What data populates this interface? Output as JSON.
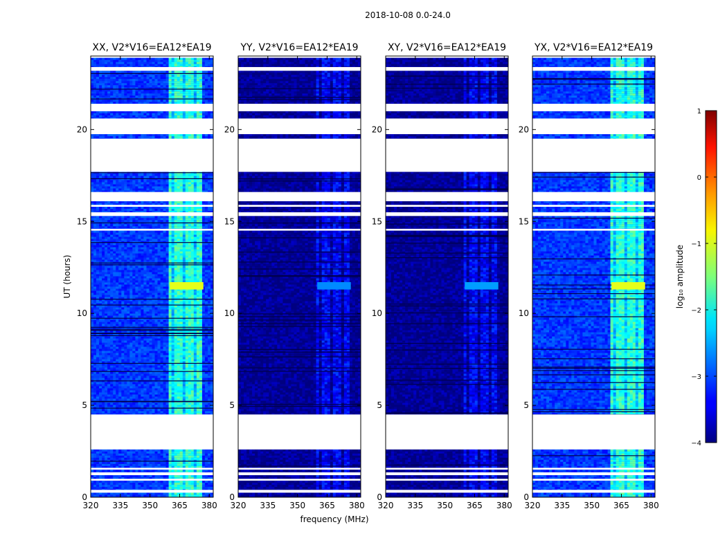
{
  "chart_data": {
    "type": "heatmap",
    "suptitle": "2018-10-08 0.0-24.0",
    "xlabel": "frequency (MHz)",
    "ylabel": "UT (hours)",
    "xlim": [
      320,
      382
    ],
    "ylim": [
      0,
      24
    ],
    "x_ticks": [
      320,
      335,
      350,
      365,
      380
    ],
    "y_ticks": [
      0,
      5,
      10,
      15,
      20
    ],
    "panels": [
      {
        "title": "XX, V2*V16=EA12*EA19",
        "base_level": -3.1,
        "rfi_level": -1.9,
        "rfi_peak_level": -1.0
      },
      {
        "title": "YY, V2*V16=EA12*EA19",
        "base_level": -3.9,
        "rfi_level": -3.4,
        "rfi_peak_level": -2.7
      },
      {
        "title": "XY, V2*V16=EA12*EA19",
        "base_level": -3.9,
        "rfi_level": -3.4,
        "rfi_peak_level": -2.6
      },
      {
        "title": "YX, V2*V16=EA12*EA19",
        "base_level": -3.1,
        "rfi_level": -1.9,
        "rfi_peak_level": -1.0
      }
    ],
    "rfi_band_mhz": [
      360,
      377
    ],
    "rfi_peak_hours": [
      11.3,
      11.7
    ],
    "data_hours": [
      [
        0.0,
        0.25
      ],
      [
        0.4,
        0.9
      ],
      [
        1.0,
        1.2
      ],
      [
        1.35,
        1.5
      ],
      [
        1.6,
        2.6
      ],
      [
        4.5,
        14.5
      ],
      [
        14.6,
        15.3
      ],
      [
        15.5,
        15.8
      ],
      [
        15.9,
        16.1
      ],
      [
        16.6,
        17.7
      ],
      [
        19.5,
        19.75
      ],
      [
        20.6,
        21.0
      ],
      [
        21.4,
        23.2
      ],
      [
        23.4,
        23.9
      ]
    ],
    "gap_hours": [
      [
        0.25,
        0.4
      ],
      [
        0.9,
        1.0
      ],
      [
        1.2,
        1.35
      ],
      [
        1.5,
        1.6
      ],
      [
        2.6,
        4.5
      ],
      [
        14.5,
        14.6
      ],
      [
        15.3,
        15.5
      ],
      [
        15.8,
        15.9
      ],
      [
        16.1,
        16.6
      ],
      [
        17.7,
        19.5
      ],
      [
        19.75,
        20.6
      ],
      [
        21.0,
        21.4
      ],
      [
        23.2,
        23.4
      ]
    ],
    "colorbar": {
      "label": "log₁₀ amplitude",
      "range": [
        -4,
        1
      ],
      "ticks": [
        "1",
        "0",
        "−1",
        "−2",
        "−3",
        "−4"
      ]
    }
  }
}
